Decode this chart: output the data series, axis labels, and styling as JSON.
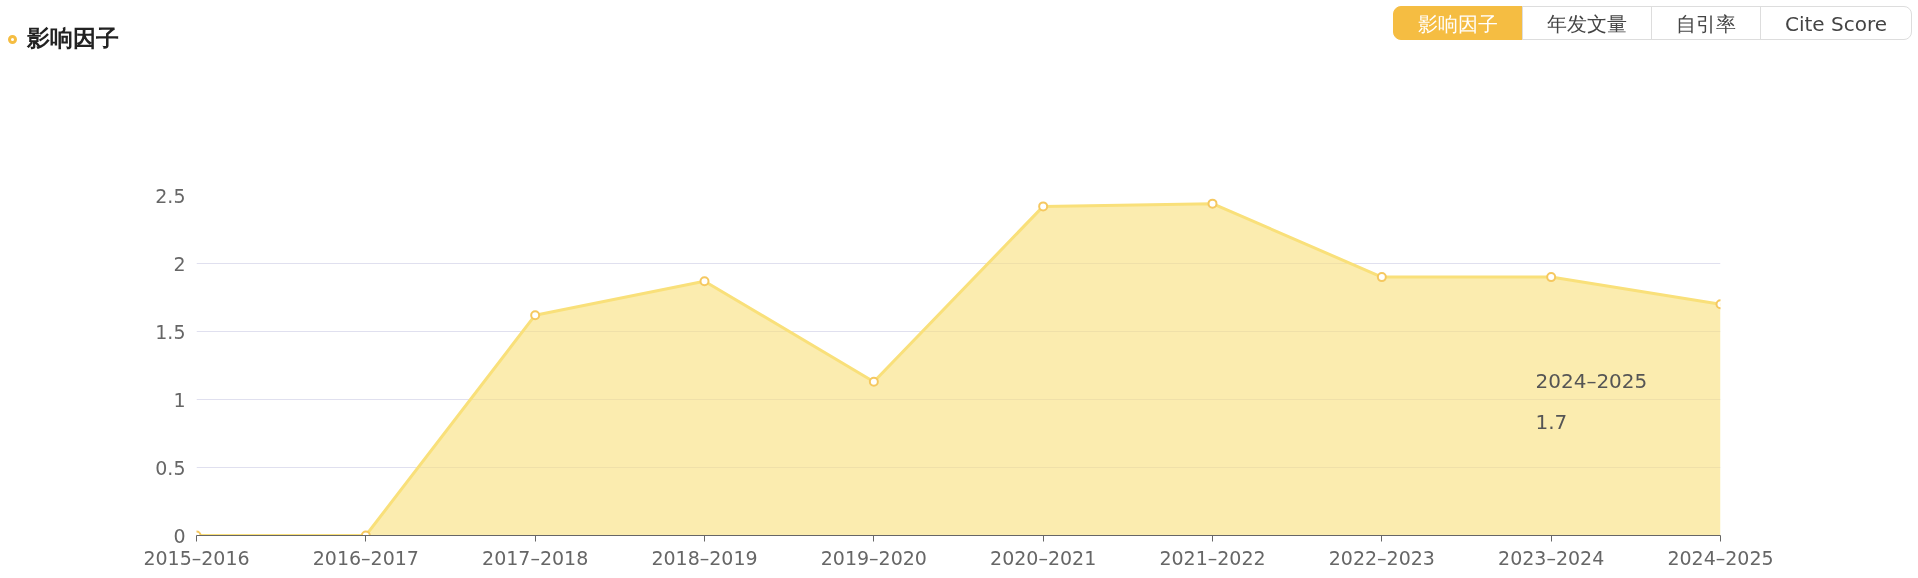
{
  "chart_data": {
    "type": "area",
    "title": "影响因子",
    "categories": [
      "2015–2016",
      "2016–2017",
      "2017–2018",
      "2018–2019",
      "2019–2020",
      "2020–2021",
      "2021–2022",
      "2022–2023",
      "2023–2024",
      "2024–2025"
    ],
    "series": [
      {
        "color": "#f9e07a",
        "values": [
          0,
          0,
          1.62,
          1.87,
          1.13,
          2.42,
          2.44,
          1.9,
          1.9,
          1.7
        ]
      }
    ],
    "ylim": [
      0,
      2.5
    ],
    "yticks": [
      0,
      0.5,
      1,
      1.5,
      2,
      2.5
    ],
    "grid": "y",
    "marker": "circle",
    "annotations": [
      "年发文量",
      "自引率",
      "Cite Score",
      "2024–2025",
      "1.7"
    ]
  }
}
